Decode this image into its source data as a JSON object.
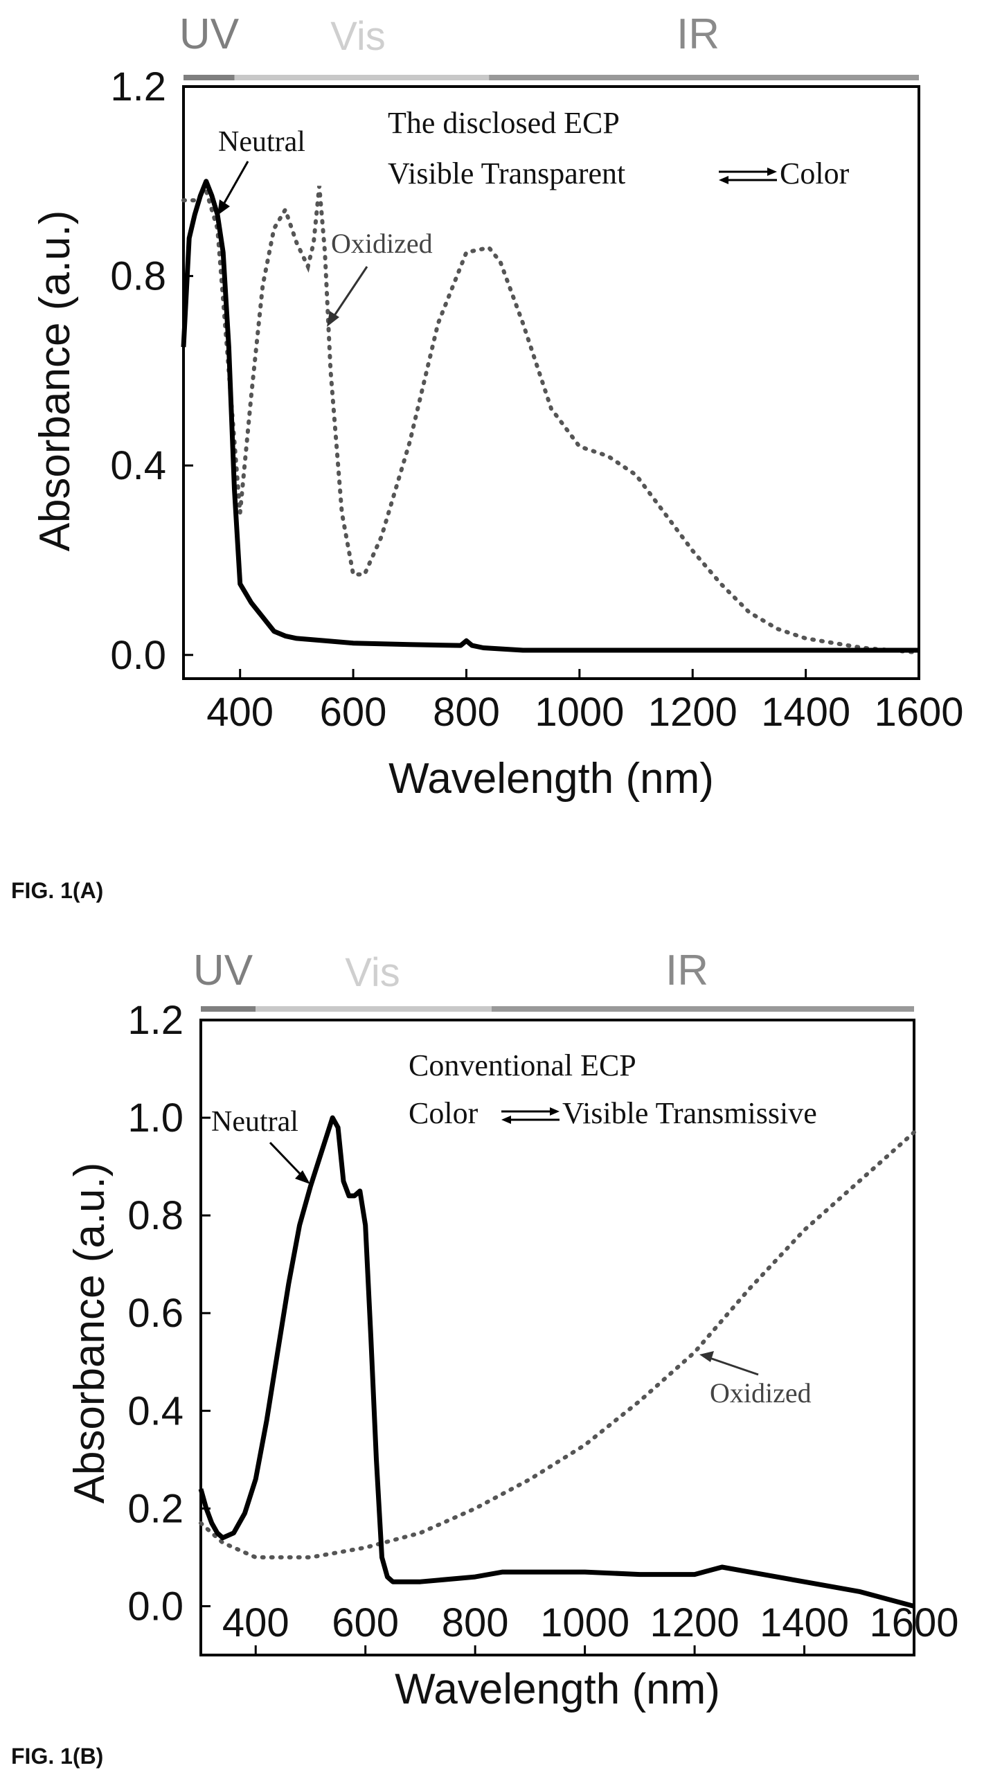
{
  "figures": [
    {
      "caption": "FIG. 1(A)",
      "region_labels": [
        "UV",
        "Vis",
        "IR"
      ],
      "annotation_lines": [
        "The disclosed ECP",
        "Visible Transparent",
        "Color"
      ],
      "neutral_label": "Neutral",
      "oxidized_label": "Oxidized"
    },
    {
      "caption": "FIG. 1(B)",
      "region_labels": [
        "UV",
        "Vis",
        "IR"
      ],
      "annotation_lines": [
        "Conventional ECP",
        "Color",
        "Visible Transmissive"
      ],
      "neutral_label": "Neutral",
      "oxidized_label": "Oxidized"
    }
  ],
  "chart_data": [
    {
      "type": "line",
      "xlabel": "Wavelength (nm)",
      "ylabel": "Absorbance (a.u.)",
      "xlim": [
        300,
        1600
      ],
      "ylim": [
        -0.05,
        1.2
      ],
      "xticks": [
        400,
        600,
        800,
        1000,
        1200,
        1400,
        1600
      ],
      "yticks": [
        0.0,
        0.4,
        0.8,
        1.2
      ],
      "ytick_labels": [
        "0.0",
        "0.4",
        "0.8",
        "1.2"
      ],
      "grid": false,
      "regions": [
        {
          "label": "UV",
          "x": [
            300,
            390
          ],
          "color": "#7f7f7f"
        },
        {
          "label": "Vis",
          "x": [
            390,
            840
          ],
          "color": "#c8c8c8"
        },
        {
          "label": "IR",
          "x": [
            840,
            1600
          ],
          "color": "#999999"
        }
      ],
      "series": [
        {
          "name": "Neutral",
          "style": "solid",
          "x": [
            300,
            310,
            320,
            330,
            340,
            350,
            360,
            370,
            380,
            390,
            400,
            410,
            420,
            440,
            460,
            480,
            500,
            550,
            600,
            700,
            790,
            800,
            810,
            830,
            900,
            1000,
            1100,
            1200,
            1300,
            1400,
            1500,
            1600
          ],
          "y": [
            0.65,
            0.88,
            0.93,
            0.97,
            1.0,
            0.97,
            0.93,
            0.85,
            0.65,
            0.35,
            0.15,
            0.13,
            0.11,
            0.08,
            0.05,
            0.04,
            0.035,
            0.03,
            0.025,
            0.022,
            0.02,
            0.03,
            0.02,
            0.015,
            0.01,
            0.01,
            0.01,
            0.01,
            0.01,
            0.01,
            0.01,
            0.01
          ]
        },
        {
          "name": "Oxidized",
          "style": "dotted",
          "x": [
            300,
            320,
            340,
            360,
            380,
            400,
            420,
            440,
            460,
            480,
            500,
            520,
            530,
            540,
            550,
            560,
            580,
            600,
            620,
            650,
            700,
            750,
            800,
            840,
            860,
            900,
            950,
            1000,
            1050,
            1100,
            1150,
            1200,
            1250,
            1300,
            1350,
            1400,
            1450,
            1500,
            1550,
            1600
          ],
          "y": [
            0.96,
            0.96,
            0.98,
            0.9,
            0.6,
            0.3,
            0.55,
            0.78,
            0.9,
            0.94,
            0.87,
            0.82,
            0.87,
            0.99,
            0.85,
            0.6,
            0.3,
            0.17,
            0.17,
            0.25,
            0.45,
            0.7,
            0.85,
            0.86,
            0.83,
            0.7,
            0.52,
            0.44,
            0.42,
            0.38,
            0.3,
            0.22,
            0.15,
            0.09,
            0.055,
            0.035,
            0.025,
            0.015,
            0.01,
            0.005
          ]
        }
      ]
    },
    {
      "type": "line",
      "xlabel": "Wavelength (nm)",
      "ylabel": "Absorbance (a.u.)",
      "xlim": [
        300,
        1600
      ],
      "ylim": [
        -0.1,
        1.2
      ],
      "xticks": [
        400,
        600,
        800,
        1000,
        1200,
        1400,
        1600
      ],
      "yticks": [
        0.0,
        0.2,
        0.4,
        0.6,
        0.8,
        1.0,
        1.2
      ],
      "ytick_labels": [
        "0.0",
        "0.2",
        "0.4",
        "0.6",
        "0.8",
        "1.0",
        "1.2"
      ],
      "grid": false,
      "regions": [
        {
          "label": "UV",
          "x": [
            300,
            400
          ],
          "color": "#7f7f7f"
        },
        {
          "label": "Vis",
          "x": [
            400,
            830
          ],
          "color": "#c8c8c8"
        },
        {
          "label": "IR",
          "x": [
            830,
            1600
          ],
          "color": "#999999"
        }
      ],
      "series": [
        {
          "name": "Neutral",
          "style": "solid",
          "x": [
            300,
            310,
            320,
            330,
            340,
            360,
            380,
            400,
            420,
            440,
            460,
            480,
            500,
            520,
            540,
            550,
            560,
            570,
            580,
            590,
            600,
            610,
            620,
            630,
            640,
            650,
            700,
            800,
            850,
            900,
            1000,
            1100,
            1200,
            1250,
            1300,
            1400,
            1500,
            1600
          ],
          "y": [
            0.24,
            0.2,
            0.17,
            0.15,
            0.14,
            0.15,
            0.19,
            0.26,
            0.38,
            0.52,
            0.66,
            0.78,
            0.86,
            0.93,
            1.0,
            0.98,
            0.87,
            0.84,
            0.84,
            0.85,
            0.78,
            0.55,
            0.3,
            0.1,
            0.06,
            0.05,
            0.05,
            0.06,
            0.07,
            0.07,
            0.07,
            0.065,
            0.065,
            0.08,
            0.07,
            0.05,
            0.03,
            0.0
          ]
        },
        {
          "name": "Oxidized",
          "style": "dotted",
          "x": [
            300,
            320,
            340,
            360,
            380,
            400,
            450,
            500,
            550,
            600,
            700,
            800,
            900,
            1000,
            1100,
            1200,
            1300,
            1400,
            1500,
            1600
          ],
          "y": [
            0.17,
            0.15,
            0.13,
            0.12,
            0.11,
            0.1,
            0.1,
            0.1,
            0.11,
            0.12,
            0.15,
            0.2,
            0.26,
            0.33,
            0.42,
            0.52,
            0.65,
            0.77,
            0.87,
            0.97
          ]
        }
      ]
    }
  ]
}
